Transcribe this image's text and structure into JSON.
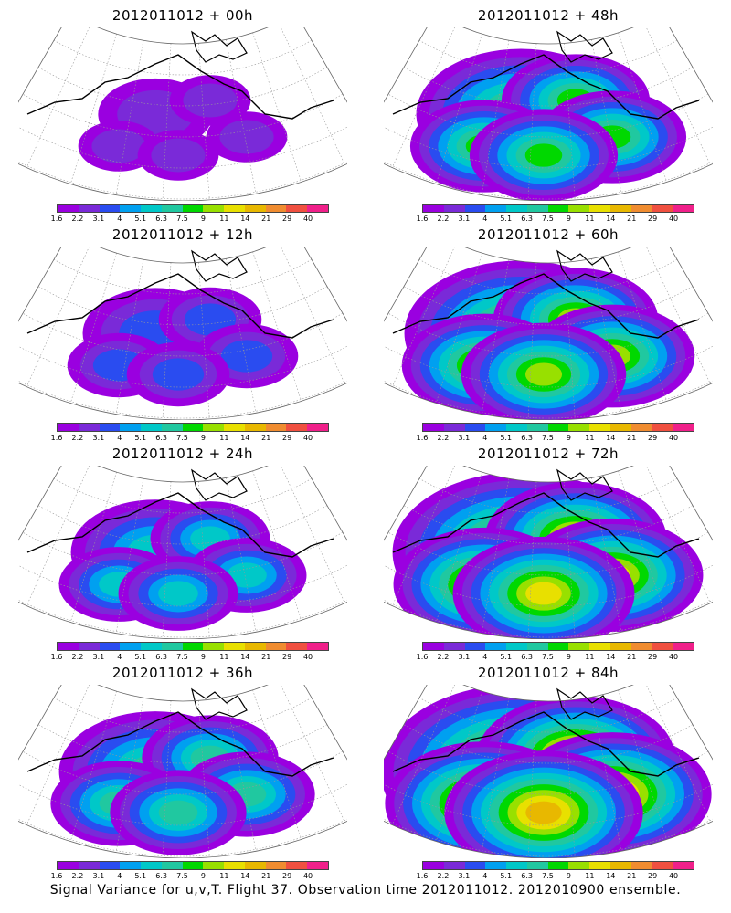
{
  "colorbar": {
    "ticks": [
      "1.6",
      "2.2",
      "3.1",
      "4",
      "5.1",
      "6.3",
      "7.5",
      "9",
      "11",
      "14",
      "21",
      "29",
      "40"
    ],
    "colors": [
      "#9a00e0",
      "#7a2ad8",
      "#2a4cf0",
      "#00a0f0",
      "#00c8c8",
      "#20c8a0",
      "#00d800",
      "#98e000",
      "#e8e000",
      "#e8b800",
      "#f08c30",
      "#f05040",
      "#f0208a"
    ]
  },
  "panels": [
    {
      "title": "2012011012 + 00h",
      "level": 0.15
    },
    {
      "title": "2012011012 + 48h",
      "level": 0.55
    },
    {
      "title": "2012011012 + 12h",
      "level": 0.28
    },
    {
      "title": "2012011012 + 60h",
      "level": 0.65
    },
    {
      "title": "2012011012 + 24h",
      "level": 0.38
    },
    {
      "title": "2012011012 + 72h",
      "level": 0.75
    },
    {
      "title": "2012011012 + 36h",
      "level": 0.48
    },
    {
      "title": "2012011012 + 84h",
      "level": 0.85
    }
  ],
  "footer": "Signal Variance for u,v,T. Flight 37. Observation time 2012011012. 2012010900 ensemble."
}
